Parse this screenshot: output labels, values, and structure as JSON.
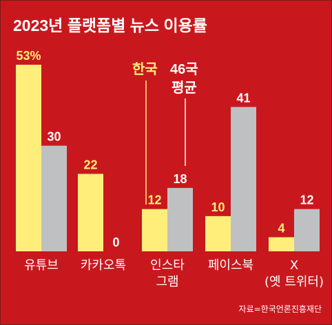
{
  "chart_data": {
    "type": "bar",
    "title": "2023년 플랫폼별 뉴스 이용률",
    "categories": [
      [
        "유튜브"
      ],
      [
        "카카오톡"
      ],
      [
        "인스타",
        "그램"
      ],
      [
        "페이스북"
      ],
      [
        "X",
        "(옛 트위터)"
      ]
    ],
    "series": [
      {
        "name": "한국",
        "values": [
          53,
          22,
          12,
          10,
          4
        ],
        "color": "#ffef7a"
      },
      {
        "name": "46국 평균",
        "values": [
          30,
          0,
          18,
          41,
          12
        ],
        "color": "#bfc0c2"
      }
    ],
    "value_suffix_first": "%",
    "legend": {
      "korea": "한국",
      "avg_line1": "46국",
      "avg_line2": "평균"
    },
    "ylim": [
      0,
      53
    ],
    "source": "자료=한국언론진흥재단",
    "colors": {
      "background": "#c8181e",
      "korea": "#ffef7a",
      "average": "#bfc0c2",
      "label_korea": "#ffef7a",
      "label_average": "#ffffff"
    }
  }
}
